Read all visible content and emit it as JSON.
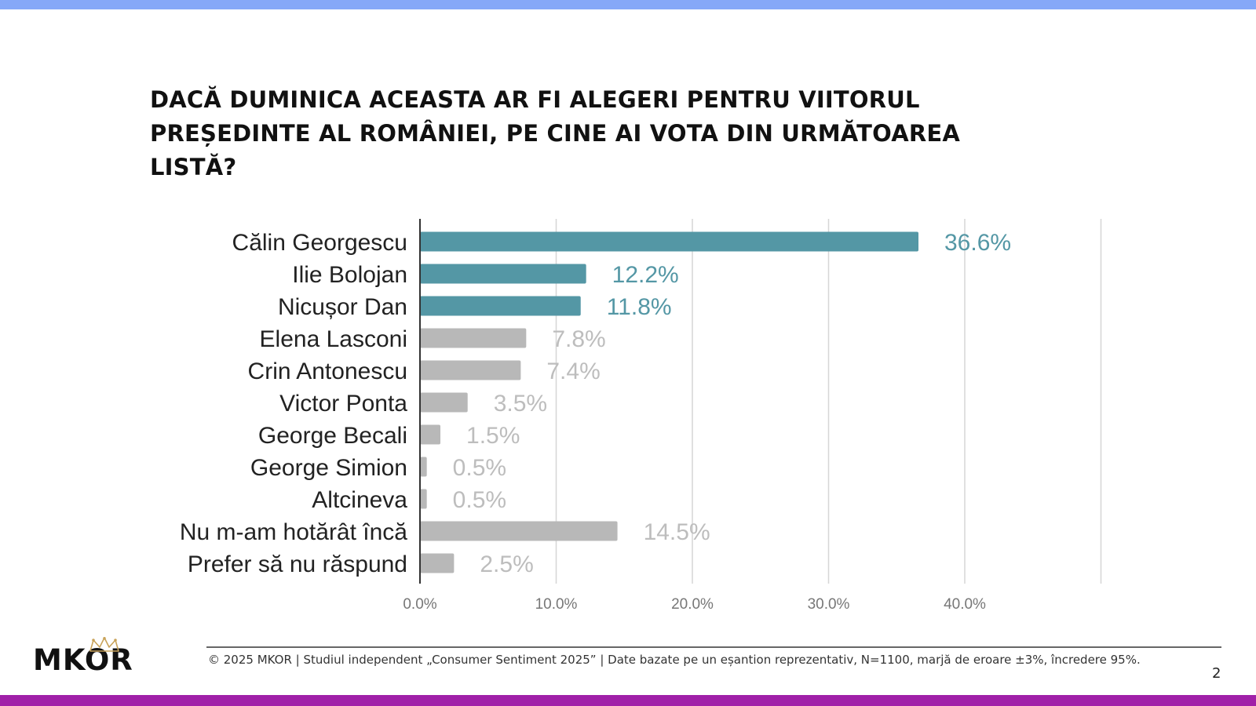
{
  "title": "DACĂ DUMINICA ACEASTA AR FI ALEGERI PENTRU VIITORUL PREȘEDINTE AL ROMÂNIEI, PE CINE AI VOTA DIN URMĂTOAREA LISTĂ?",
  "footer": "© 2025 MKOR | Studiul independent „Consumer Sentiment 2025” | Date bazate pe un eșantion reprezentativ, N=1100, marjă de eroare ±3%, încredere 95%.",
  "logo": "MKOR",
  "page_number": "2",
  "colors": {
    "highlight": "#5497a5",
    "muted_bar": "#b8b8b8",
    "muted_label": "#bdbdbd",
    "top_bar": "#86a8f8",
    "bottom_bar": "#a020a8"
  },
  "chart_data": {
    "type": "bar",
    "orientation": "horizontal",
    "categories": [
      "Călin Georgescu",
      "Ilie Bolojan",
      "Nicușor Dan",
      "Elena Lasconi",
      "Crin Antonescu",
      "Victor Ponta",
      "George Becali",
      "George Simion",
      "Altcineva",
      "Nu m-am hotărât încă",
      "Prefer să nu răspund"
    ],
    "values": [
      36.6,
      12.2,
      11.8,
      7.8,
      7.4,
      3.5,
      1.5,
      0.5,
      0.5,
      14.5,
      2.5
    ],
    "value_labels": [
      "36.6%",
      "12.2%",
      "11.8%",
      "7.8%",
      "7.4%",
      "3.5%",
      "1.5%",
      "0.5%",
      "0.5%",
      "14.5%",
      "2.5%"
    ],
    "highlighted": [
      true,
      true,
      true,
      false,
      false,
      false,
      false,
      false,
      false,
      false,
      false
    ],
    "x_ticks": [
      0,
      10,
      20,
      30,
      40
    ],
    "x_tick_labels": [
      "0.0%",
      "10.0%",
      "20.0%",
      "30.0%",
      "40.0%"
    ],
    "xlim": [
      0,
      50
    ],
    "grid": true,
    "title": "DACĂ DUMINICA ACEASTA AR FI ALEGERI PENTRU VIITORUL PREȘEDINTE AL ROMÂNIEI, PE CINE AI VOTA DIN URMĂTOAREA LISTĂ?",
    "xlabel": "",
    "ylabel": ""
  }
}
